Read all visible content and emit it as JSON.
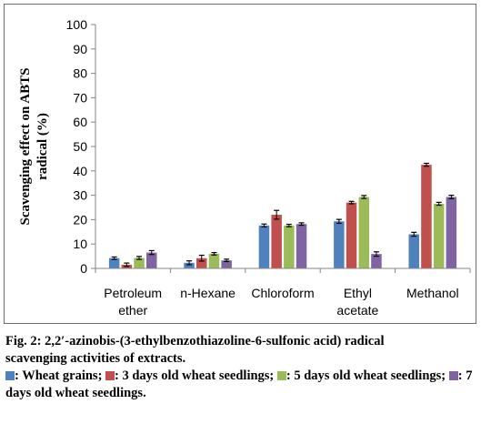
{
  "chart_data": {
    "type": "bar",
    "ylabel_lines": [
      "Scavenging effect on ABTS",
      "radical (%)"
    ],
    "ylim": [
      0,
      100
    ],
    "yticks": [
      0,
      10,
      20,
      30,
      40,
      50,
      60,
      70,
      80,
      90,
      100
    ],
    "categories": [
      [
        "Petroleum",
        "ether"
      ],
      [
        "n-Hexane"
      ],
      [
        "Chloroform"
      ],
      [
        "Ethyl",
        "acetate"
      ],
      [
        "Methanol"
      ]
    ],
    "series": [
      {
        "color": "#4F81BD",
        "values": [
          4.2,
          2.3,
          17.6,
          19.3,
          14.0
        ],
        "errors": [
          0.5,
          0.8,
          0.6,
          0.8,
          0.8
        ]
      },
      {
        "color": "#C0504D",
        "values": [
          1.5,
          4.2,
          22.0,
          27.0,
          42.5
        ],
        "errors": [
          0.7,
          1.2,
          1.8,
          0.5,
          0.6
        ]
      },
      {
        "color": "#9BBB59",
        "values": [
          4.3,
          6.0,
          17.6,
          29.3,
          26.5
        ],
        "errors": [
          0.6,
          0.5,
          0.5,
          0.6,
          0.6
        ]
      },
      {
        "color": "#8064A2",
        "values": [
          6.5,
          3.3,
          18.2,
          5.9,
          29.3
        ],
        "errors": [
          0.8,
          0.5,
          0.5,
          0.9,
          0.7
        ]
      }
    ],
    "grid": false,
    "legend": "none"
  },
  "caption": {
    "line1": "Fig. 2: 2,2′-azinobis-(3-ethylbenzothiazoline-6-sulfonic acid) radical",
    "line2": "scavenging activities of extracts.",
    "legend": [
      {
        "color": "#4F81BD",
        "text": ": Wheat grains; "
      },
      {
        "color": "#C0504D",
        "text": ": 3 days old wheat seedlings; "
      },
      {
        "color": "#9BBB59",
        "text": ": 5 days old wheat seedlings; "
      },
      {
        "color": "#8064A2",
        "text": ": 7 days old wheat seedlings."
      }
    ]
  }
}
